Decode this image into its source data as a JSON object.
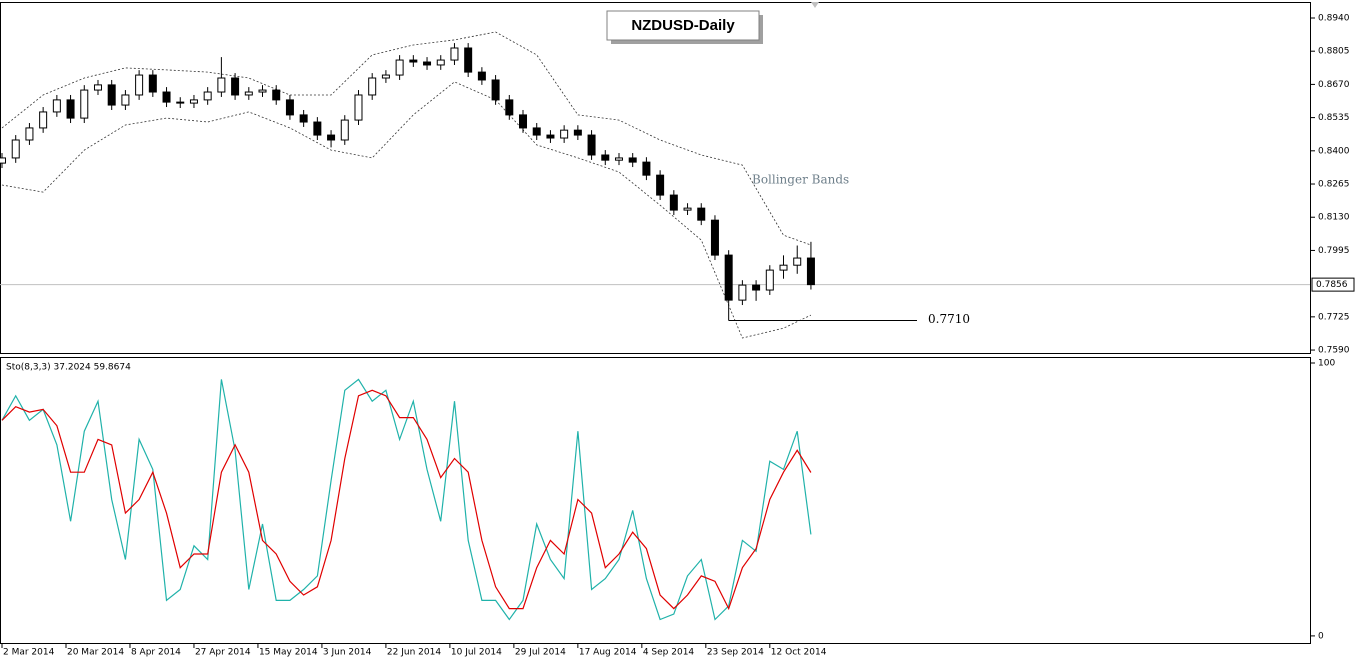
{
  "chart_data": [
    {
      "type": "candlestick",
      "title": "NZDUSD-Daily",
      "x": [
        0,
        3,
        6,
        9,
        12,
        15,
        18,
        21,
        24,
        27,
        30,
        33,
        36,
        39,
        42,
        45,
        48,
        51,
        54,
        57,
        60,
        63,
        66,
        69,
        72,
        75,
        78,
        81,
        84,
        87,
        90,
        93,
        96,
        99,
        102,
        105,
        108,
        111,
        114,
        117,
        120,
        123,
        126,
        129,
        132,
        135,
        138,
        141,
        144,
        147,
        150,
        153,
        156,
        159,
        162,
        165,
        168,
        171,
        174,
        177
      ],
      "open": [
        0.835,
        0.8371,
        0.8444,
        0.8493,
        0.8558,
        0.8607,
        0.8533,
        0.8647,
        0.8668,
        0.8586,
        0.8627,
        0.8708,
        0.8639,
        0.8598,
        0.8594,
        0.8607,
        0.8639,
        0.8696,
        0.8627,
        0.8639,
        0.8647,
        0.8607,
        0.8546,
        0.8517,
        0.8464,
        0.8444,
        0.8525,
        0.8627,
        0.8696,
        0.8708,
        0.8769,
        0.8761,
        0.8749,
        0.8769,
        0.8818,
        0.872,
        0.8688,
        0.8607,
        0.8546,
        0.8493,
        0.8464,
        0.8452,
        0.8484,
        0.8464,
        0.8383,
        0.8362,
        0.8371,
        0.8354,
        0.8301,
        0.822,
        0.8159,
        0.8167,
        0.8118,
        0.7976,
        0.7793,
        0.7854,
        0.7834,
        0.7915,
        0.7935,
        0.7964
      ],
      "high": [
        0.8391,
        0.8464,
        0.8513,
        0.8578,
        0.8627,
        0.8627,
        0.8667,
        0.8688,
        0.8688,
        0.8647,
        0.8728,
        0.8728,
        0.8659,
        0.8618,
        0.8627,
        0.8659,
        0.8781,
        0.8716,
        0.8659,
        0.8667,
        0.8667,
        0.8627,
        0.8566,
        0.8537,
        0.8484,
        0.8545,
        0.8647,
        0.8716,
        0.8728,
        0.8789,
        0.8789,
        0.8781,
        0.8789,
        0.8838,
        0.8838,
        0.874,
        0.8708,
        0.8627,
        0.8566,
        0.8513,
        0.8484,
        0.8504,
        0.8504,
        0.8484,
        0.8403,
        0.8391,
        0.8391,
        0.8374,
        0.8321,
        0.824,
        0.8187,
        0.8187,
        0.8138,
        0.7996,
        0.7874,
        0.7874,
        0.7935,
        0.7975,
        0.8015,
        0.803
      ],
      "low": [
        0.833,
        0.8351,
        0.8424,
        0.8473,
        0.8538,
        0.8513,
        0.8513,
        0.8627,
        0.8566,
        0.8566,
        0.8607,
        0.8619,
        0.8578,
        0.8574,
        0.8574,
        0.8587,
        0.8619,
        0.8607,
        0.8607,
        0.8619,
        0.8587,
        0.8526,
        0.8497,
        0.8444,
        0.8414,
        0.8424,
        0.8505,
        0.8607,
        0.8676,
        0.8688,
        0.8741,
        0.8729,
        0.8729,
        0.8749,
        0.87,
        0.8668,
        0.8587,
        0.8526,
        0.8473,
        0.8444,
        0.8432,
        0.8432,
        0.8444,
        0.8363,
        0.8342,
        0.8342,
        0.8334,
        0.8281,
        0.82,
        0.8139,
        0.8139,
        0.8098,
        0.7956,
        0.771,
        0.7773,
        0.779,
        0.7814,
        0.788,
        0.79,
        0.7836
      ],
      "close": [
        0.8371,
        0.8444,
        0.8493,
        0.8558,
        0.8607,
        0.8533,
        0.8647,
        0.8668,
        0.8586,
        0.8627,
        0.8708,
        0.8639,
        0.8598,
        0.8594,
        0.8607,
        0.8639,
        0.8696,
        0.8627,
        0.8639,
        0.8647,
        0.8607,
        0.8546,
        0.8517,
        0.8464,
        0.8444,
        0.8525,
        0.8627,
        0.8696,
        0.8708,
        0.8769,
        0.8761,
        0.8749,
        0.8769,
        0.8818,
        0.872,
        0.8688,
        0.8607,
        0.8546,
        0.8493,
        0.8464,
        0.8452,
        0.8484,
        0.8464,
        0.8383,
        0.8362,
        0.8371,
        0.8354,
        0.8301,
        0.822,
        0.8159,
        0.8167,
        0.8118,
        0.7976,
        0.7793,
        0.7854,
        0.7834,
        0.7915,
        0.7935,
        0.7964,
        0.7856
      ],
      "bands": {
        "label": "Bollinger Bands",
        "x": [
          0,
          9,
          18,
          27,
          36,
          45,
          54,
          63,
          72,
          81,
          90,
          99,
          108,
          117,
          126,
          135,
          144,
          153,
          162,
          171,
          177
        ],
        "upper": [
          0.8493,
          0.8627,
          0.8696,
          0.8737,
          0.8729,
          0.872,
          0.8696,
          0.8627,
          0.8627,
          0.879,
          0.883,
          0.8851,
          0.8883,
          0.879,
          0.8546,
          0.8525,
          0.8444,
          0.8383,
          0.8342,
          0.8057,
          0.8017
        ],
        "lower": [
          0.8261,
          0.8232,
          0.8403,
          0.8505,
          0.8533,
          0.8517,
          0.8558,
          0.8493,
          0.8403,
          0.8371,
          0.8546,
          0.868,
          0.8607,
          0.8424,
          0.8371,
          0.8314,
          0.8179,
          0.8037,
          0.7639,
          0.7679,
          0.7732
        ]
      },
      "last_price": 0.7856,
      "annotation": {
        "value": 0.771,
        "label": "0.7710"
      },
      "xlim": [
        -0.44,
        286.2
      ],
      "ylim": [
        0.7578,
        0.9005
      ],
      "yticks": [
        {
          "value": 0.894,
          "label": "0.8940"
        },
        {
          "value": 0.8805,
          "label": "0.8805"
        },
        {
          "value": 0.867,
          "label": "0.8670"
        },
        {
          "value": 0.8535,
          "label": "0.8535"
        },
        {
          "value": 0.84,
          "label": "0.8400"
        },
        {
          "value": 0.8265,
          "label": "0.8265"
        },
        {
          "value": 0.813,
          "label": "0.8130"
        },
        {
          "value": 0.7995,
          "label": "0.7995"
        },
        {
          "value": 0.7725,
          "label": "0.7725"
        },
        {
          "value": 0.759,
          "label": "0.7590"
        }
      ]
    },
    {
      "type": "line",
      "title": "Sto(8,3,3) 37.2024 59.8674",
      "x": [
        0,
        3,
        6,
        9,
        12,
        15,
        18,
        21,
        24,
        27,
        30,
        33,
        36,
        39,
        42,
        45,
        48,
        51,
        54,
        57,
        60,
        63,
        66,
        69,
        72,
        75,
        78,
        81,
        84,
        87,
        90,
        93,
        96,
        99,
        102,
        105,
        108,
        111,
        114,
        117,
        120,
        123,
        126,
        129,
        132,
        135,
        138,
        141,
        144,
        147,
        150,
        153,
        156,
        159,
        162,
        165,
        168,
        171,
        174,
        177
      ],
      "series": [
        {
          "color": "#20b2aa",
          "values": [
            79,
            88,
            79,
            83,
            70,
            42,
            75,
            86,
            50,
            28,
            72,
            61,
            13,
            17,
            33,
            28,
            94,
            68,
            17,
            41,
            13,
            13,
            17,
            22,
            57,
            90,
            94,
            86,
            90,
            72,
            86,
            61,
            42,
            86,
            35,
            13,
            13,
            6,
            13,
            41,
            28,
            21,
            75,
            17,
            21,
            28,
            46,
            21,
            6,
            8,
            22,
            28,
            6,
            11,
            35,
            31,
            64,
            61,
            75,
            37.2024
          ]
        },
        {
          "color": "#e00000",
          "values": [
            79,
            84,
            82,
            83,
            77,
            60,
            60,
            72,
            70,
            45,
            50,
            60,
            45,
            25,
            30,
            30,
            60,
            70,
            60,
            35,
            30,
            20,
            15,
            18,
            35,
            65,
            88,
            90,
            88,
            80,
            80,
            72,
            58,
            65,
            60,
            35,
            18,
            10,
            10,
            25,
            35,
            30,
            50,
            45,
            25,
            30,
            38,
            32,
            15,
            10,
            15,
            22,
            20,
            10,
            25,
            32,
            50,
            60,
            68,
            59.8674
          ]
        }
      ],
      "xlim": [
        -0.44,
        286.2
      ],
      "ylim": [
        -2.6,
        102.2
      ],
      "yticks": [
        0,
        100
      ],
      "xticks": [
        {
          "value": 0,
          "label": "2 Mar 2014"
        },
        {
          "value": 14,
          "label": "20 Mar 2014"
        },
        {
          "value": 28,
          "label": "8 Apr 2014"
        },
        {
          "value": 42,
          "label": "27 Apr 2014"
        },
        {
          "value": 56,
          "label": "15 May 2014"
        },
        {
          "value": 70,
          "label": "3 Jun 2014"
        },
        {
          "value": 84,
          "label": "22 Jun 2014"
        },
        {
          "value": 98,
          "label": "10 Jul 2014"
        },
        {
          "value": 112,
          "label": "29 Jul 2014"
        },
        {
          "value": 126,
          "label": "17 Aug 2014"
        },
        {
          "value": 140,
          "label": "4 Sep 2014"
        },
        {
          "value": 154,
          "label": "23 Sep 2014"
        },
        {
          "value": 168,
          "label": "12 Oct 2014"
        }
      ]
    }
  ]
}
